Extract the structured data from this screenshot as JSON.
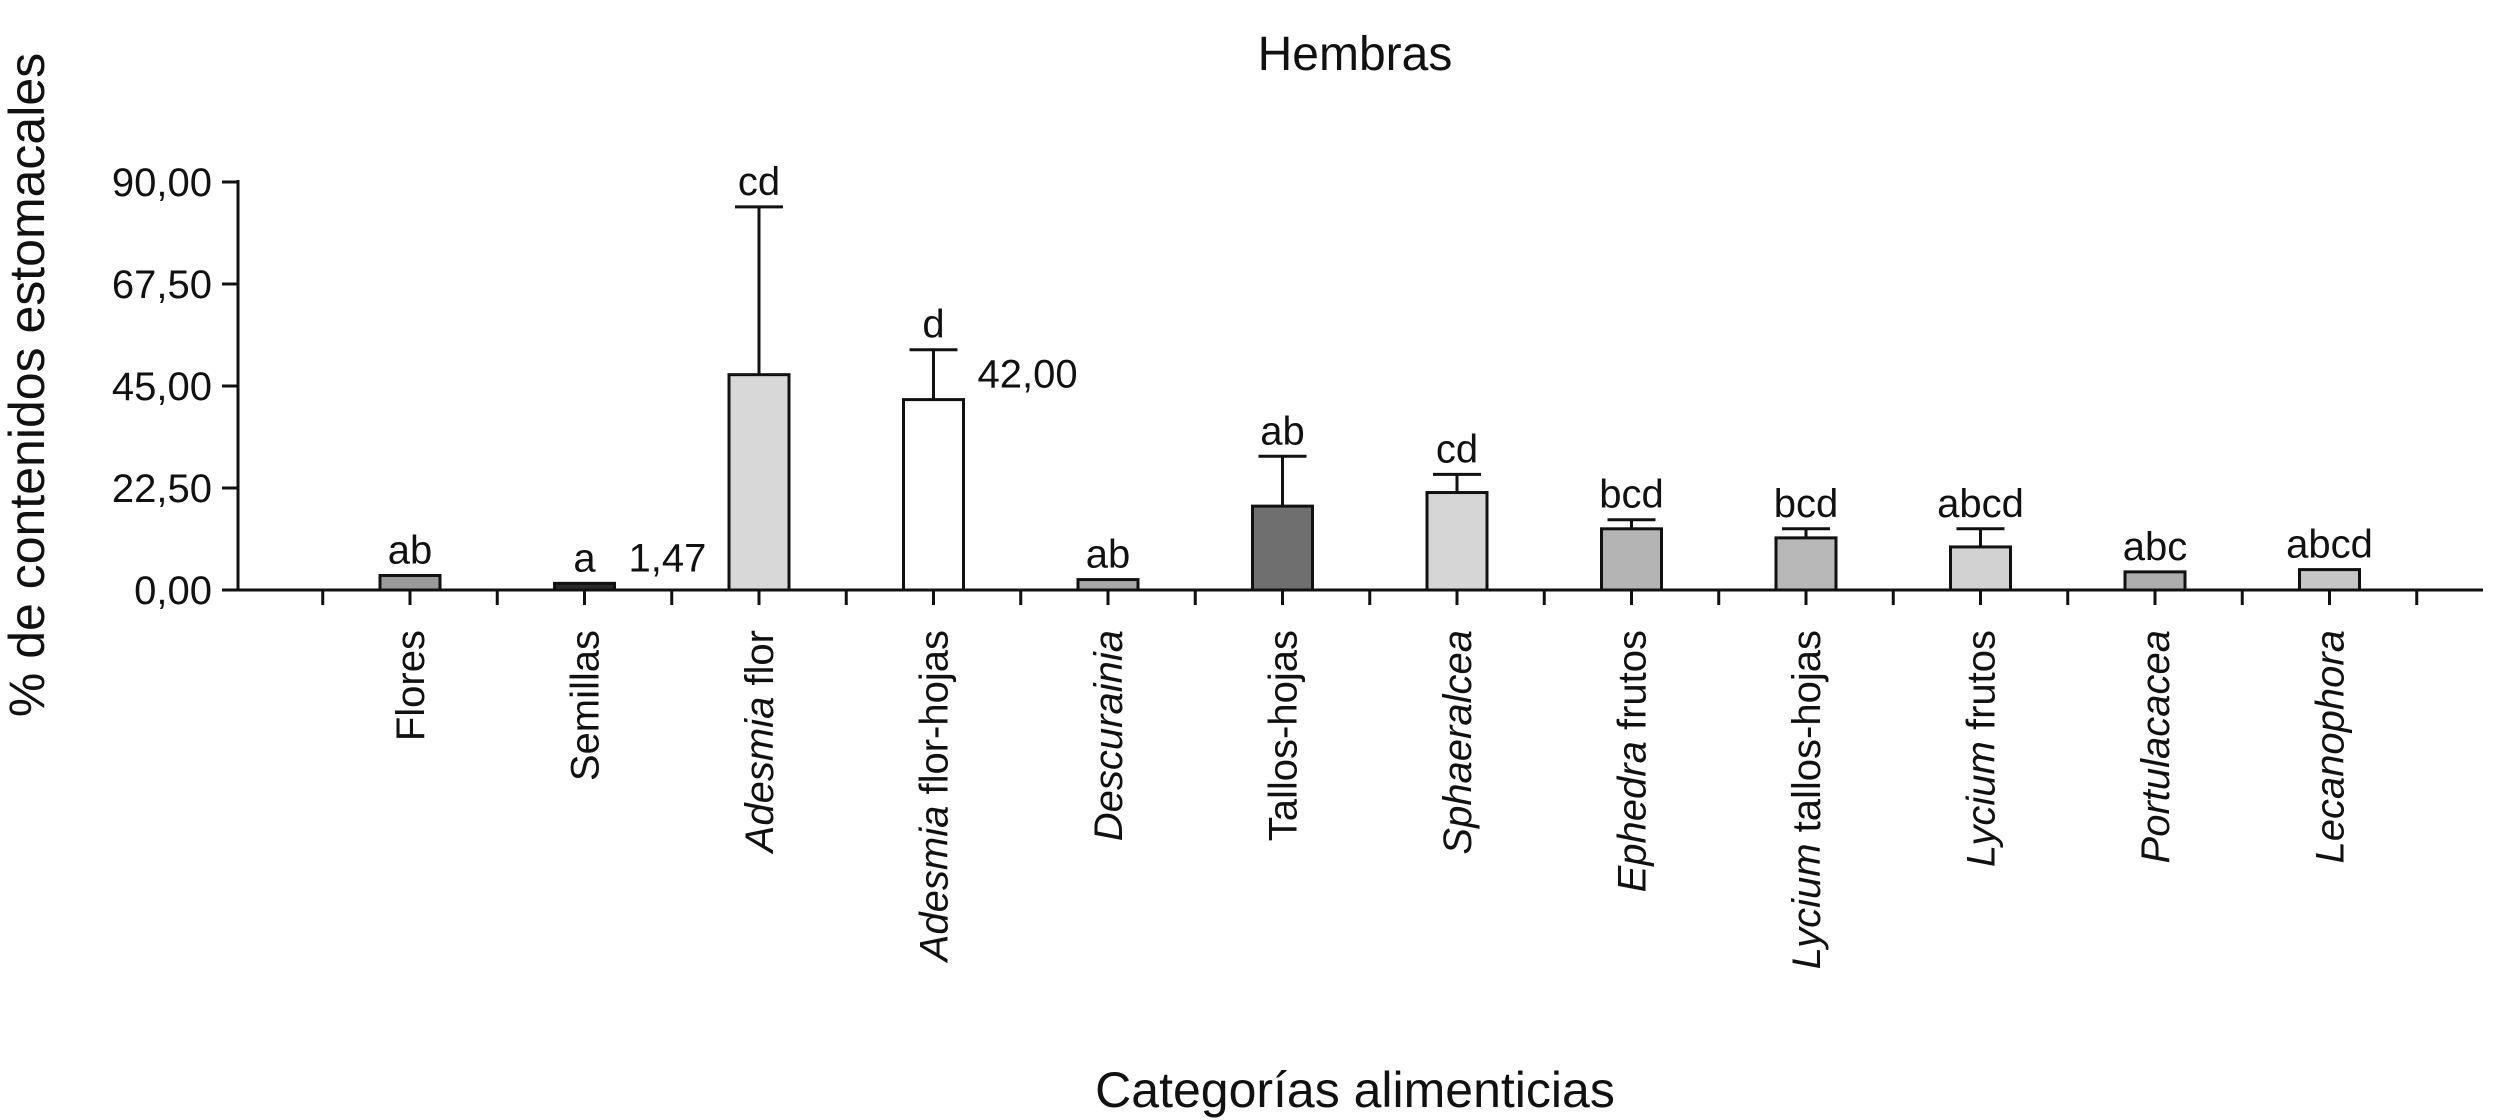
{
  "chart_data": {
    "type": "bar",
    "title": "Hembras",
    "xlabel": "Categorías alimenticias",
    "ylabel": "% de contenidos estomacales",
    "ylim": [
      0,
      90
    ],
    "yticks": [
      "0,00",
      "22,50",
      "45,00",
      "67,50",
      "90,00"
    ],
    "ytick_values": [
      0,
      22.5,
      45,
      67.5,
      90
    ],
    "categories": [
      {
        "label": "Flores",
        "parts": [
          {
            "text": "Flores",
            "italic": false
          }
        ]
      },
      {
        "label": "Semillas",
        "parts": [
          {
            "text": "Semillas",
            "italic": false
          }
        ]
      },
      {
        "label": "Adesmia flor",
        "parts": [
          {
            "text": "Adesmia",
            "italic": true
          },
          {
            "text": " flor",
            "italic": false
          }
        ]
      },
      {
        "label": "Adesmia flor-hojas",
        "parts": [
          {
            "text": "Adesmia",
            "italic": true
          },
          {
            "text": " flor-hojas",
            "italic": false
          }
        ]
      },
      {
        "label": "Descurainia",
        "parts": [
          {
            "text": "Descurainia",
            "italic": true
          }
        ]
      },
      {
        "label": "Tallos-hojas",
        "parts": [
          {
            "text": "Tallos-hojas",
            "italic": false
          }
        ]
      },
      {
        "label": "Sphaeralcea",
        "parts": [
          {
            "text": "Sphaeralcea",
            "italic": true
          }
        ]
      },
      {
        "label": "Ephedra frutos",
        "parts": [
          {
            "text": "Ephedra",
            "italic": true
          },
          {
            "text": " frutos",
            "italic": false
          }
        ]
      },
      {
        "label": "Lycium tallos-hojas",
        "parts": [
          {
            "text": "Lycium",
            "italic": true
          },
          {
            "text": " tallos-hojas",
            "italic": false
          }
        ]
      },
      {
        "label": "Lycium frutos",
        "parts": [
          {
            "text": "Lycium",
            "italic": true
          },
          {
            "text": " frutos",
            "italic": false
          }
        ]
      },
      {
        "label": "Portulacacea",
        "parts": [
          {
            "text": "Portulacacea",
            "italic": true
          }
        ]
      },
      {
        "label": "Lecanophora",
        "parts": [
          {
            "text": "Lecanophora",
            "italic": true
          }
        ]
      }
    ],
    "values": [
      3.2,
      1.47,
      47.5,
      42.0,
      2.3,
      18.5,
      21.5,
      13.5,
      11.5,
      9.5,
      4.0,
      4.5
    ],
    "error_upper": [
      3.2,
      1.47,
      84.5,
      53.0,
      2.3,
      29.5,
      25.5,
      15.5,
      13.5,
      13.5,
      4.0,
      4.5
    ],
    "significance": [
      "ab",
      "a",
      "cd",
      "d",
      "ab",
      "ab",
      "cd",
      "bcd",
      "bcd",
      "abcd",
      "abc",
      "abcd"
    ],
    "value_labels": [
      {
        "index": 1,
        "text": "1,47"
      },
      {
        "index": 3,
        "text": "42,00"
      }
    ],
    "bar_colors": [
      "#9a9a9a",
      "#2a2a2a",
      "#d8d8d8",
      "#ffffff",
      "#a8a8a8",
      "#6f6f6f",
      "#d6d6d6",
      "#b4b4b4",
      "#b8b8b8",
      "#d2d2d2",
      "#adadad",
      "#c6c6c6"
    ],
    "grid": false,
    "legend": "none"
  }
}
